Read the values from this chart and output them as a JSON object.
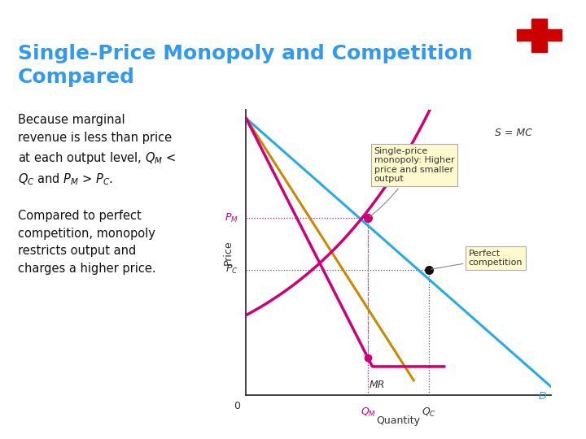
{
  "title_line1": "Single-Price Monopoly and Competition",
  "title_line2": "Compared",
  "title_color": "#3399ee",
  "title_fontsize": 18,
  "bg_color": "#ffffff",
  "slide_top_bar_color": "#55bbff",
  "left_bar_color": "#55bbff",
  "graph": {
    "xlabel": "Quantity",
    "ylabel": "Price",
    "D_color": "#29abe2",
    "mr_color": "#cc0077",
    "supply_color": "#cc0077",
    "orange_color": "#cc8800",
    "PM_label": "$P_M$",
    "PC_label": "$P_C$",
    "QM_label": "$Q_M$",
    "QC_label": "$Q_C$",
    "label_MR": "MR",
    "label_D": "D",
    "label_SMC": "S = MC",
    "box1_text": "Single-price\nmonopoly: Higher\nprice and smaller\noutput",
    "box2_text": "Perfect\ncompetition",
    "box_bg": "#fffacd",
    "box_edge": "#aaaaaa",
    "dot_monopoly_color": "#cc0077",
    "dot_competition_color": "#111111",
    "dashed_color_PM": "#cc0077",
    "dashed_color_PC": "#555555",
    "QM": 0.4,
    "QC": 0.6,
    "PM": 0.62,
    "PC": 0.44
  }
}
